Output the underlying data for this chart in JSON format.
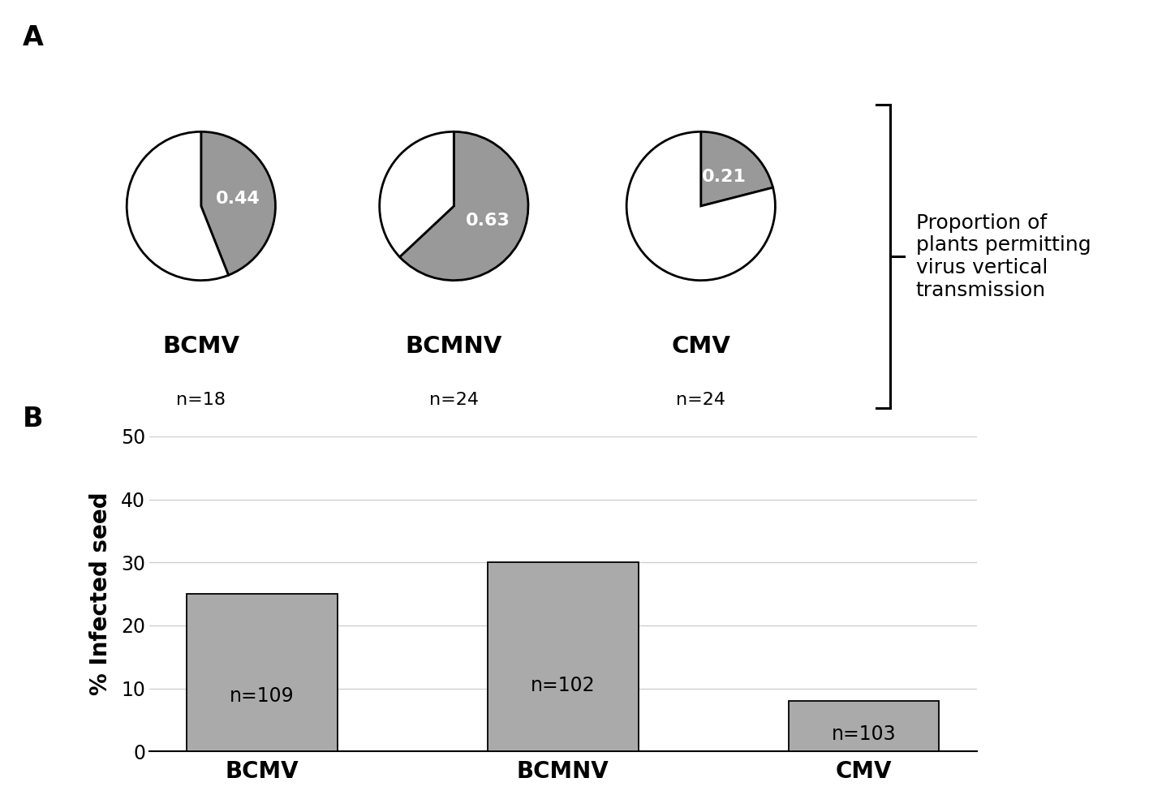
{
  "panel_A": {
    "pies": [
      {
        "label": "BCMV",
        "value": 0.44,
        "n": "n=18"
      },
      {
        "label": "BCMNV",
        "value": 0.63,
        "n": "n=24"
      },
      {
        "label": "CMV",
        "value": 0.21,
        "n": "n=24"
      }
    ],
    "pie_color": "#999999",
    "pie_bg": "#ffffff",
    "pie_edge": "#000000",
    "annotation": "Proportion of\nplants permitting\nvirus vertical\ntransmission"
  },
  "panel_B": {
    "categories": [
      "BCMV",
      "BCMNV",
      "CMV"
    ],
    "values": [
      25,
      30,
      8
    ],
    "ns": [
      "n=109",
      "n=102",
      "n=103"
    ],
    "bar_color": "#aaaaaa",
    "bar_edge": "#000000",
    "ylabel": "% Infected seed",
    "ylim": [
      0,
      50
    ],
    "yticks": [
      0,
      10,
      20,
      30,
      40,
      50
    ]
  },
  "label_fontsize": 20,
  "tick_fontsize": 17,
  "panel_label_fontsize": 24,
  "n_fontsize_pie": 16,
  "n_fontsize_bar": 17,
  "pie_value_fontsize": 16,
  "annotation_fontsize": 18,
  "pie_label_fontsize": 21
}
